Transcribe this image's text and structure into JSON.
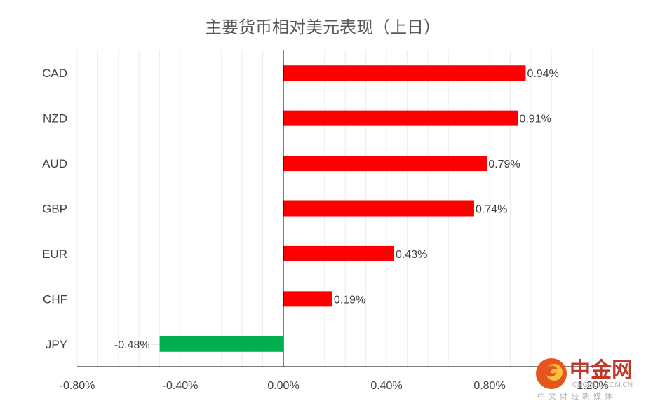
{
  "chart_data": {
    "type": "bar",
    "orientation": "horizontal",
    "title": "主要货币相对美元表现（上日）",
    "categories": [
      "CAD",
      "NZD",
      "AUD",
      "GBP",
      "EUR",
      "CHF",
      "JPY"
    ],
    "values": [
      0.94,
      0.91,
      0.79,
      0.74,
      0.43,
      0.19,
      -0.48
    ],
    "data_labels": [
      "0.94%",
      "0.91%",
      "0.79%",
      "0.74%",
      "0.43%",
      "0.19%",
      "-0.48%"
    ],
    "xlim": [
      -0.8,
      1.2
    ],
    "x_ticks": [
      -0.8,
      -0.4,
      0.0,
      0.4,
      0.8,
      1.2
    ],
    "x_tick_labels": [
      "-0.80%",
      "-0.40%",
      "0.00%",
      "0.40%",
      "0.80%",
      "1.20%"
    ],
    "grid": "vertical",
    "colors": {
      "positive": "#ff0000",
      "negative": "#00b050"
    }
  },
  "watermark": {
    "name": "中金网",
    "url": "CNGOLD.COM.CN",
    "tagline": "中文财经新媒体"
  }
}
